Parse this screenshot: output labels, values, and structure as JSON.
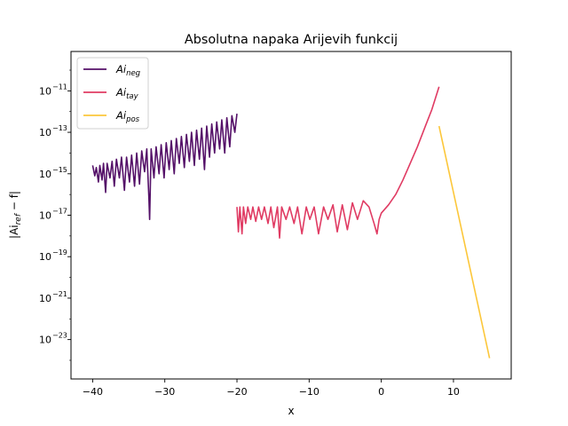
{
  "chart_data": {
    "type": "line",
    "title": "Absolutna napaka Arijevih funkcij",
    "xlabel": "x",
    "ylabel": "|Ai_ref − f|",
    "ylabel_parts": {
      "base": "|Ai",
      "sub": "ref",
      "tail": " − f|"
    },
    "xscale": "linear",
    "yscale": "log",
    "xlim": [
      -43,
      18
    ],
    "ylim_log10": [
      -24.9,
      -9.1
    ],
    "xticks": [
      -40,
      -30,
      -20,
      -10,
      0,
      10
    ],
    "xtick_labels": [
      "−40",
      "−30",
      "−20",
      "−10",
      "0",
      "10"
    ],
    "yticks_log10": [
      -23,
      -21,
      -19,
      -17,
      -15,
      -13,
      -11
    ],
    "ytick_labels": [
      {
        "base": "10",
        "exp": "−23"
      },
      {
        "base": "10",
        "exp": "−21"
      },
      {
        "base": "10",
        "exp": "−19"
      },
      {
        "base": "10",
        "exp": "−17"
      },
      {
        "base": "10",
        "exp": "−15"
      },
      {
        "base": "10",
        "exp": "−13"
      },
      {
        "base": "10",
        "exp": "−11"
      }
    ],
    "grid": false,
    "legend_position": "top-left",
    "series": [
      {
        "name": "Ai_neg",
        "label": {
          "base": "Ai",
          "sub": "neg"
        },
        "color": "#541068",
        "points": [
          [
            -40,
            -14.6
          ],
          [
            -39.7,
            -15.1
          ],
          [
            -39.5,
            -14.7
          ],
          [
            -39.2,
            -15.4
          ],
          [
            -39,
            -14.6
          ],
          [
            -38.7,
            -15.3
          ],
          [
            -38.5,
            -14.5
          ],
          [
            -38.2,
            -15.9
          ],
          [
            -38,
            -14.5
          ],
          [
            -37.6,
            -15.2
          ],
          [
            -37.3,
            -14.4
          ],
          [
            -37,
            -15.6
          ],
          [
            -36.7,
            -14.3
          ],
          [
            -36.3,
            -15.2
          ],
          [
            -36,
            -14.2
          ],
          [
            -35.6,
            -15.8
          ],
          [
            -35.3,
            -14.2
          ],
          [
            -34.9,
            -15.4
          ],
          [
            -34.6,
            -14.1
          ],
          [
            -34.2,
            -15.6
          ],
          [
            -33.9,
            -14.0
          ],
          [
            -33.5,
            -15.5
          ],
          [
            -33.2,
            -13.9
          ],
          [
            -32.8,
            -14.9
          ],
          [
            -32.5,
            -13.8
          ],
          [
            -32.2,
            -16.2
          ],
          [
            -32.1,
            -17.2
          ],
          [
            -31.9,
            -13.8
          ],
          [
            -31.5,
            -15.2
          ],
          [
            -31.2,
            -13.7
          ],
          [
            -30.8,
            -15.0
          ],
          [
            -30.5,
            -13.6
          ],
          [
            -30.1,
            -15.2
          ],
          [
            -29.8,
            -13.5
          ],
          [
            -29.4,
            -14.8
          ],
          [
            -29.1,
            -13.4
          ],
          [
            -28.7,
            -15.0
          ],
          [
            -28.4,
            -13.3
          ],
          [
            -28,
            -14.5
          ],
          [
            -27.7,
            -13.2
          ],
          [
            -27.3,
            -14.7
          ],
          [
            -27,
            -13.1
          ],
          [
            -26.6,
            -14.4
          ],
          [
            -26.3,
            -13.0
          ],
          [
            -25.9,
            -14.6
          ],
          [
            -25.6,
            -12.9
          ],
          [
            -25.2,
            -14.3
          ],
          [
            -24.9,
            -12.8
          ],
          [
            -24.5,
            -14.8
          ],
          [
            -24.2,
            -12.7
          ],
          [
            -23.8,
            -14.2
          ],
          [
            -23.5,
            -12.6
          ],
          [
            -23.1,
            -14.0
          ],
          [
            -22.8,
            -12.5
          ],
          [
            -22.4,
            -13.8
          ],
          [
            -22.1,
            -12.4
          ],
          [
            -21.7,
            -14.0
          ],
          [
            -21.4,
            -12.3
          ],
          [
            -21,
            -13.7
          ],
          [
            -20.7,
            -12.2
          ],
          [
            -20.3,
            -13.0
          ],
          [
            -20,
            -12.1
          ]
        ]
      },
      {
        "name": "Ai_tay",
        "label": {
          "base": "Ai",
          "sub": "tay"
        },
        "color": "#e03b63",
        "points": [
          [
            -20,
            -16.6
          ],
          [
            -19.8,
            -17.8
          ],
          [
            -19.6,
            -16.6
          ],
          [
            -19.3,
            -17.9
          ],
          [
            -19.1,
            -16.6
          ],
          [
            -18.8,
            -17.4
          ],
          [
            -18.5,
            -16.6
          ],
          [
            -18.1,
            -17.2
          ],
          [
            -17.8,
            -16.6
          ],
          [
            -17.4,
            -17.3
          ],
          [
            -17,
            -16.6
          ],
          [
            -16.6,
            -17.2
          ],
          [
            -16.2,
            -16.6
          ],
          [
            -15.7,
            -17.4
          ],
          [
            -15.3,
            -16.6
          ],
          [
            -14.9,
            -17.6
          ],
          [
            -14.4,
            -16.6
          ],
          [
            -14.1,
            -18.1
          ],
          [
            -13.8,
            -16.6
          ],
          [
            -13.2,
            -17.2
          ],
          [
            -12.7,
            -16.6
          ],
          [
            -12.1,
            -17.4
          ],
          [
            -11.6,
            -16.6
          ],
          [
            -11,
            -17.9
          ],
          [
            -10.4,
            -16.6
          ],
          [
            -9.9,
            -17.2
          ],
          [
            -9.3,
            -16.6
          ],
          [
            -8.7,
            -17.9
          ],
          [
            -8,
            -16.6
          ],
          [
            -7.4,
            -17.2
          ],
          [
            -6.7,
            -16.5
          ],
          [
            -6.1,
            -17.8
          ],
          [
            -5.4,
            -16.5
          ],
          [
            -4.7,
            -17.7
          ],
          [
            -4,
            -16.4
          ],
          [
            -3.3,
            -17.2
          ],
          [
            -2.5,
            -16.3
          ],
          [
            -1.7,
            -16.6
          ],
          [
            -1,
            -17.4
          ],
          [
            -0.6,
            -17.9
          ],
          [
            -0.3,
            -17.2
          ],
          [
            0,
            -16.9
          ],
          [
            1,
            -16.5
          ],
          [
            2,
            -16.0
          ],
          [
            3,
            -15.3
          ],
          [
            4,
            -14.5
          ],
          [
            5,
            -13.7
          ],
          [
            6,
            -12.8
          ],
          [
            7,
            -11.9
          ],
          [
            8,
            -10.8
          ]
        ]
      },
      {
        "name": "Ai_pos",
        "label": {
          "base": "Ai",
          "sub": "pos"
        },
        "color": "#fcc73b",
        "points": [
          [
            8,
            -12.7
          ],
          [
            15,
            -23.9
          ]
        ]
      }
    ]
  }
}
